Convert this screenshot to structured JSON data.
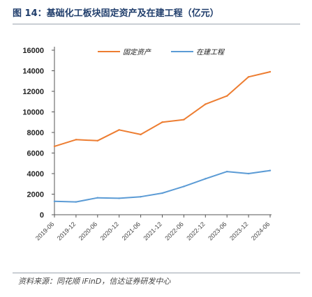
{
  "figure": {
    "title": "图 14：基础化工板块固定资产及在建工程（亿元）",
    "source": "资料来源：同花顺 iFinD，信达证券研发中心"
  },
  "chart_data": {
    "type": "line",
    "x": [
      "2019-06",
      "2019-12",
      "2020-06",
      "2020-12",
      "2021-06",
      "2021-12",
      "2022-06",
      "2022-12",
      "2023-06",
      "2023-12",
      "2024-06"
    ],
    "tick_labels": [
      "2019-06",
      "2019-12",
      "2020-06",
      "2020-12",
      "2021-06",
      "2021-12",
      "2022-06",
      "2022-12",
      "2023-06",
      "2023-12",
      "2024-06"
    ],
    "ylim": [
      0,
      16000
    ],
    "yticks": [
      0,
      2000,
      4000,
      6000,
      8000,
      10000,
      12000,
      14000,
      16000
    ],
    "grid": false,
    "legend_position": "top",
    "series": [
      {
        "name": "固定资产",
        "color": "#ed7d31",
        "values": [
          6650,
          7300,
          7200,
          8250,
          7800,
          9000,
          9250,
          10750,
          11550,
          13400,
          13900
        ]
      },
      {
        "name": "在建工程",
        "color": "#5b9bd5",
        "values": [
          1300,
          1250,
          1650,
          1600,
          1750,
          2100,
          2750,
          3500,
          4200,
          4000,
          4300
        ]
      }
    ]
  }
}
